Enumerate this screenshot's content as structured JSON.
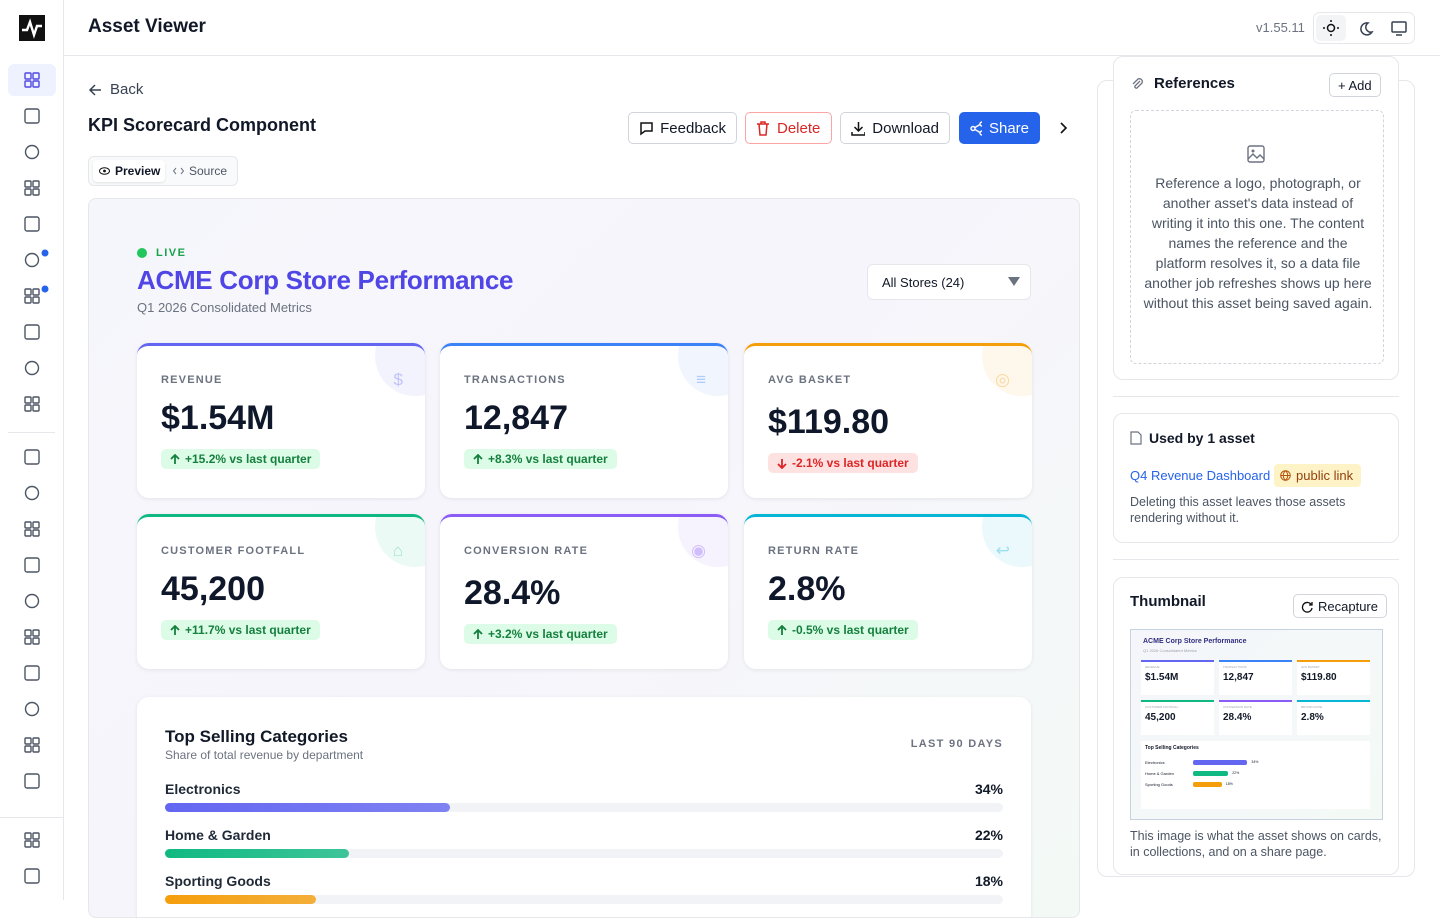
{
  "header": {
    "title": "Asset Viewer",
    "version": "v1.55.11"
  },
  "toolbar": {
    "back": "Back",
    "title": "KPI Scorecard Component",
    "buttons": [
      "Feedback",
      "Delete",
      "Download",
      "Share"
    ],
    "tabs": [
      "Preview",
      "Source"
    ]
  },
  "preview": {
    "status": "LIVE",
    "title": "ACME Corp Store Performance",
    "subtitle": "Q1 2026 Consolidated Metrics",
    "store_select": "All Stores (24)",
    "kpis": [
      {
        "label": "REVENUE",
        "icon": "$",
        "value": "$1.54M",
        "change": "+15.2% vs last quarter",
        "trend": "up",
        "color": "#6366f1"
      },
      {
        "label": "TRANSACTIONS",
        "icon": "≡",
        "value": "12,847",
        "change": "+8.3% vs last quarter",
        "trend": "up",
        "color": "#3b82f6"
      },
      {
        "label": "AVG BASKET",
        "icon": "◎",
        "value": "$119.80",
        "change": "-2.1% vs last quarter",
        "trend": "down",
        "color": "#f59e0b"
      },
      {
        "label": "CUSTOMER FOOTFALL",
        "icon": "⌂",
        "value": "45,200",
        "change": "+11.7% vs last quarter",
        "trend": "up",
        "color": "#10b981"
      },
      {
        "label": "CONVERSION RATE",
        "icon": "◉",
        "value": "28.4%",
        "change": "+3.2% vs last quarter",
        "trend": "up",
        "color": "#8b5cf6"
      },
      {
        "label": "RETURN RATE",
        "icon": "↩",
        "value": "2.8%",
        "change": "-0.5% vs last quarter",
        "trend": "up",
        "color": "#06b6d4"
      }
    ],
    "categories": {
      "title": "Top Selling Categories",
      "subtitle": "Share of total revenue by department",
      "period": "LAST 90 DAYS",
      "rows": [
        {
          "name": "Electronics",
          "value": 34,
          "value_label": "34%",
          "color": "#6366f1"
        },
        {
          "name": "Home & Garden",
          "value": 22,
          "value_label": "22%",
          "color": "#10b981"
        },
        {
          "name": "Sporting Goods",
          "value": 18,
          "value_label": "18%",
          "color": "#f59e0b"
        }
      ]
    }
  },
  "sidebar": {
    "references": {
      "title": "References",
      "add": "+ Add",
      "body": "Reference a logo, photograph, or another asset's data instead of writing it into this one. The content names the reference and the platform resolves it, so a data file another job refreshes shows up here without this asset being saved again."
    },
    "used_by": {
      "title": "Used by 1 asset",
      "link": "Q4 Revenue Dashboard",
      "badge": "public link",
      "note": "Deleting this asset leaves those assets rendering without it."
    },
    "thumbnail": {
      "title": "Thumbnail",
      "button": "Recapture",
      "caption": "This image is what the asset shows on cards, in collections, and on a share page."
    }
  }
}
